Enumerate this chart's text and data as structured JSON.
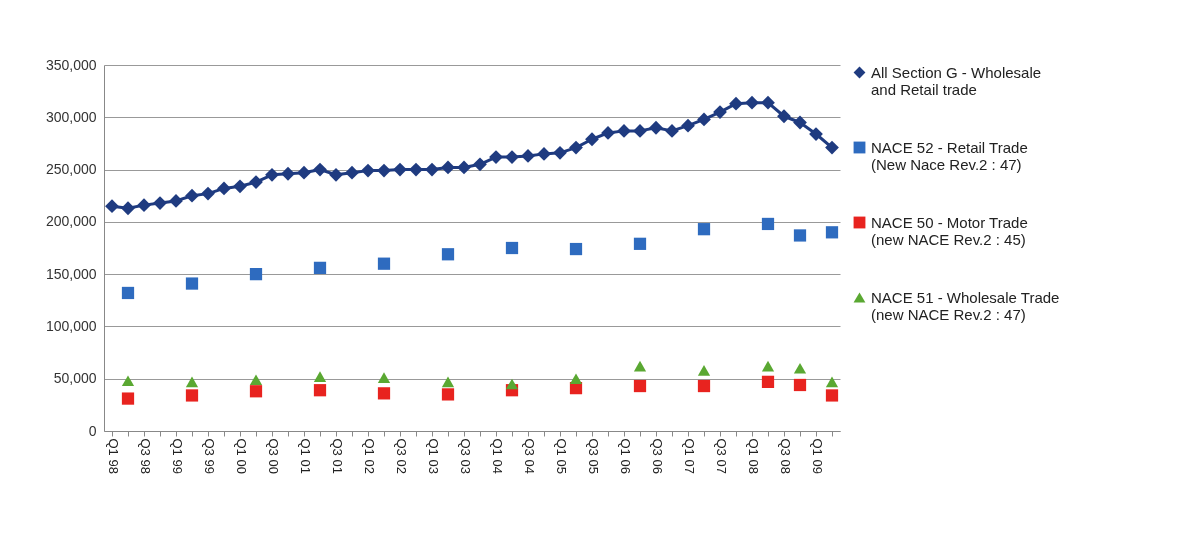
{
  "chart_data": {
    "type": "line",
    "categories": [
      "Q1 98",
      null,
      "Q3 98",
      null,
      "Q1 99",
      null,
      "Q3 99",
      null,
      "Q1 00",
      null,
      "Q3 00",
      null,
      "Q1 01",
      null,
      "Q3 01",
      null,
      "Q1 02",
      null,
      "Q3 02",
      null,
      "Q1 03",
      null,
      "Q3 03",
      null,
      "Q1 04",
      null,
      "Q3 04",
      null,
      "Q1 05",
      null,
      "Q3 05",
      null,
      "Q1 06",
      null,
      "Q3 06",
      null,
      "Q1 07",
      null,
      "Q3 07",
      null,
      "Q1 08",
      null,
      "Q3 08",
      null,
      "Q1 09",
      null
    ],
    "series": [
      {
        "name": "All Section  G - Wholesale and Retail trade",
        "color": "#1f3b80",
        "marker": "diamond",
        "line_style": "solid",
        "values": [
          215000,
          213000,
          216000,
          218000,
          220000,
          225000,
          227000,
          232000,
          234000,
          238000,
          245000,
          246000,
          247000,
          250000,
          245000,
          247000,
          249000,
          249000,
          250000,
          250000,
          250000,
          252000,
          252000,
          255000,
          262000,
          262000,
          263000,
          265000,
          266000,
          271000,
          279000,
          285000,
          287000,
          287000,
          290000,
          287000,
          292000,
          298000,
          305000,
          313000,
          314000,
          314000,
          301000,
          295000,
          284000,
          271000
        ]
      },
      {
        "name": "NACE 52  - Retail Trade (New Nace Rev.2 : 47)",
        "type": "scatter",
        "color": "#2e6bbf",
        "marker": "square",
        "values": [
          null,
          132000,
          null,
          null,
          null,
          141000,
          null,
          null,
          null,
          150000,
          null,
          null,
          null,
          156000,
          null,
          null,
          null,
          160000,
          null,
          null,
          null,
          169000,
          null,
          null,
          null,
          175000,
          null,
          null,
          null,
          174000,
          null,
          null,
          null,
          179000,
          null,
          null,
          null,
          193000,
          null,
          null,
          null,
          198000,
          null,
          187000,
          null,
          190000
        ]
      },
      {
        "name": "NACE 50  - Motor Trade (new NACE Rev.2 : 45)",
        "type": "scatter",
        "color": "#e8231f",
        "marker": "square",
        "values": [
          null,
          31000,
          null,
          null,
          null,
          34000,
          null,
          null,
          null,
          38000,
          null,
          null,
          null,
          39000,
          null,
          null,
          null,
          36000,
          null,
          null,
          null,
          35000,
          null,
          null,
          null,
          39000,
          null,
          null,
          null,
          41000,
          null,
          null,
          null,
          43000,
          null,
          null,
          null,
          43000,
          null,
          null,
          null,
          47000,
          null,
          44000,
          null,
          34000
        ]
      },
      {
        "name": "NACE 51 - Wholesale Trade (new NACE Rev.2 : 47)",
        "type": "scatter",
        "color": "#5aa832",
        "marker": "triangle",
        "values": [
          null,
          48000,
          null,
          null,
          null,
          47000,
          null,
          null,
          null,
          49000,
          null,
          null,
          null,
          52000,
          null,
          null,
          null,
          51000,
          null,
          null,
          null,
          47000,
          null,
          null,
          null,
          45000,
          null,
          null,
          null,
          50000,
          null,
          null,
          null,
          62000,
          null,
          null,
          null,
          58000,
          null,
          null,
          null,
          62000,
          null,
          60000,
          null,
          47000
        ]
      }
    ],
    "ylim": [
      0,
      350000
    ],
    "yticks": [
      0,
      {
        "value": 50000,
        "label": "50,000"
      },
      {
        "value": 100000,
        "label": "100,000"
      },
      {
        "value": 150000,
        "label": "150,000"
      },
      {
        "value": 200000,
        "label": "200,000"
      },
      {
        "value": 250000,
        "label": "250,000"
      },
      {
        "value": 300000,
        "label": "300,000"
      },
      {
        "value": 350000,
        "label": "350,000"
      }
    ],
    "grid": "y",
    "legend": "right"
  }
}
